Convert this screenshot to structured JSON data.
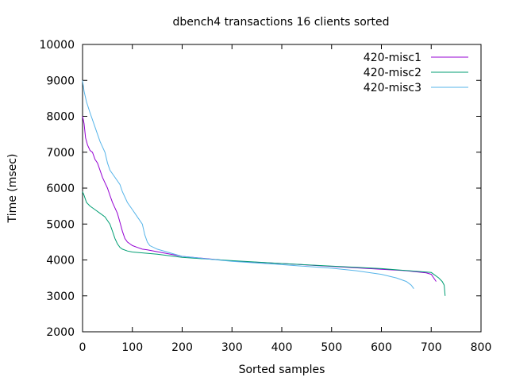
{
  "chart_data": {
    "type": "line",
    "title": "dbench4 transactions 16 clients sorted",
    "xlabel": "Sorted samples",
    "ylabel": "Time (msec)",
    "xlim": [
      0,
      800
    ],
    "ylim": [
      2000,
      10000
    ],
    "xticks": [
      "0",
      "100",
      "200",
      "300",
      "400",
      "500",
      "600",
      "700",
      "800"
    ],
    "yticks": [
      "2000",
      "3000",
      "4000",
      "5000",
      "6000",
      "7000",
      "8000",
      "9000",
      "10000"
    ],
    "grid": false,
    "legend_position": "top-right",
    "series": [
      {
        "name": "420-misc1",
        "color": "#9400d3",
        "points": [
          [
            0,
            8000
          ],
          [
            3,
            7800
          ],
          [
            6,
            7400
          ],
          [
            10,
            7200
          ],
          [
            15,
            7050
          ],
          [
            20,
            7000
          ],
          [
            25,
            6800
          ],
          [
            30,
            6700
          ],
          [
            35,
            6500
          ],
          [
            40,
            6300
          ],
          [
            45,
            6150
          ],
          [
            50,
            6000
          ],
          [
            55,
            5800
          ],
          [
            60,
            5600
          ],
          [
            65,
            5450
          ],
          [
            70,
            5300
          ],
          [
            75,
            5050
          ],
          [
            80,
            4800
          ],
          [
            85,
            4600
          ],
          [
            90,
            4500
          ],
          [
            95,
            4450
          ],
          [
            100,
            4400
          ],
          [
            110,
            4350
          ],
          [
            120,
            4300
          ],
          [
            130,
            4280
          ],
          [
            150,
            4230
          ],
          [
            200,
            4100
          ],
          [
            300,
            3970
          ],
          [
            400,
            3900
          ],
          [
            500,
            3820
          ],
          [
            600,
            3740
          ],
          [
            650,
            3700
          ],
          [
            690,
            3640
          ],
          [
            700,
            3600
          ],
          [
            705,
            3500
          ],
          [
            710,
            3400
          ]
        ]
      },
      {
        "name": "420-misc2",
        "color": "#009e73",
        "points": [
          [
            0,
            5900
          ],
          [
            3,
            5800
          ],
          [
            8,
            5600
          ],
          [
            15,
            5500
          ],
          [
            25,
            5400
          ],
          [
            35,
            5300
          ],
          [
            45,
            5200
          ],
          [
            55,
            5000
          ],
          [
            60,
            4800
          ],
          [
            65,
            4600
          ],
          [
            70,
            4450
          ],
          [
            75,
            4350
          ],
          [
            80,
            4300
          ],
          [
            90,
            4250
          ],
          [
            100,
            4220
          ],
          [
            150,
            4160
          ],
          [
            200,
            4070
          ],
          [
            300,
            3980
          ],
          [
            400,
            3900
          ],
          [
            500,
            3830
          ],
          [
            600,
            3760
          ],
          [
            700,
            3650
          ],
          [
            715,
            3500
          ],
          [
            722,
            3400
          ],
          [
            726,
            3300
          ],
          [
            728,
            3000
          ]
        ]
      },
      {
        "name": "420-misc3",
        "color": "#56b4e9",
        "points": [
          [
            0,
            9000
          ],
          [
            3,
            8700
          ],
          [
            8,
            8400
          ],
          [
            15,
            8100
          ],
          [
            25,
            7700
          ],
          [
            35,
            7300
          ],
          [
            45,
            7000
          ],
          [
            50,
            6700
          ],
          [
            55,
            6500
          ],
          [
            65,
            6300
          ],
          [
            75,
            6100
          ],
          [
            80,
            5900
          ],
          [
            90,
            5600
          ],
          [
            100,
            5400
          ],
          [
            110,
            5200
          ],
          [
            120,
            5000
          ],
          [
            125,
            4700
          ],
          [
            130,
            4500
          ],
          [
            135,
            4400
          ],
          [
            150,
            4300
          ],
          [
            200,
            4100
          ],
          [
            300,
            3960
          ],
          [
            400,
            3870
          ],
          [
            500,
            3770
          ],
          [
            550,
            3700
          ],
          [
            600,
            3600
          ],
          [
            630,
            3500
          ],
          [
            650,
            3400
          ],
          [
            660,
            3300
          ],
          [
            665,
            3200
          ]
        ]
      }
    ]
  }
}
